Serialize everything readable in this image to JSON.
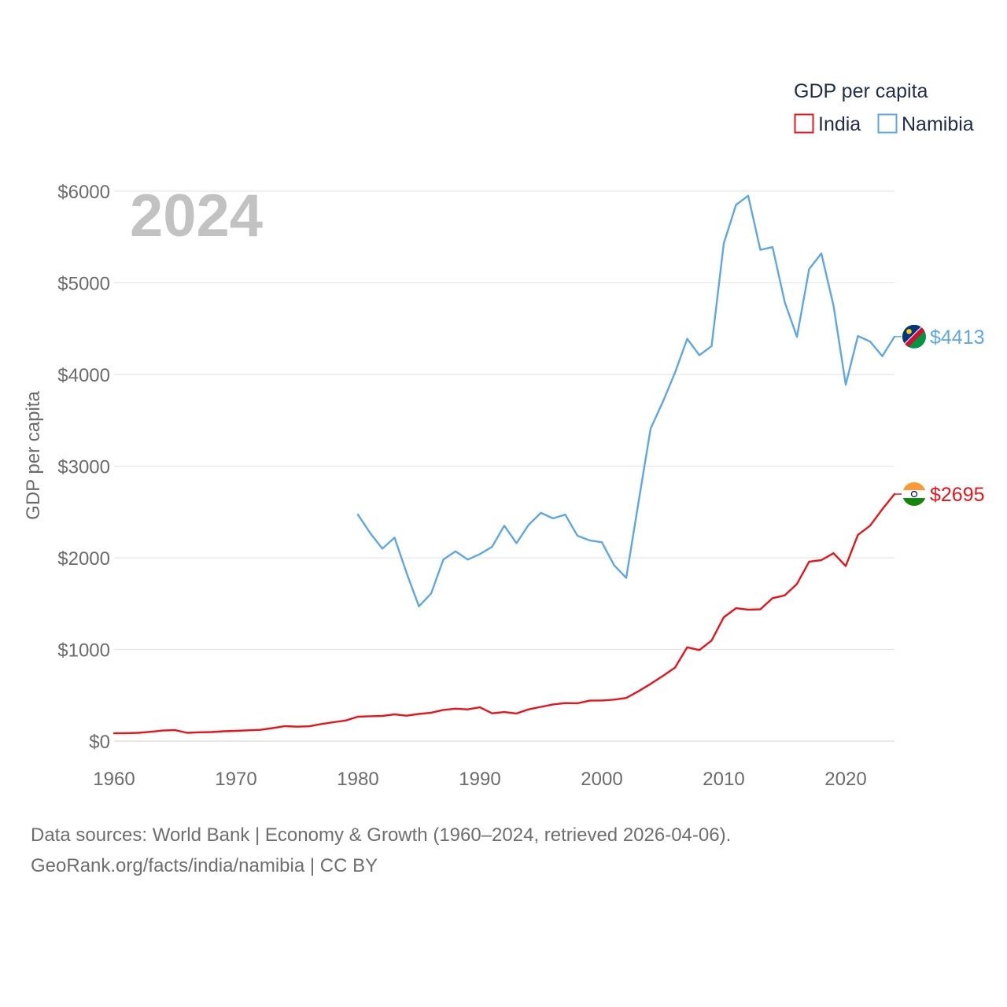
{
  "chart_data": {
    "type": "line",
    "title": "",
    "legend_title": "GDP per capita",
    "ylabel": "GDP per capita",
    "xlabel": "",
    "year_label": "2024",
    "xlim": [
      1960,
      2024
    ],
    "ylim": [
      0,
      6000
    ],
    "x_ticks": [
      1960,
      1970,
      1980,
      1990,
      2000,
      2010,
      2020
    ],
    "x_tick_labels": [
      "1960",
      "1970",
      "1980",
      "1990",
      "2000",
      "2010",
      "2020"
    ],
    "y_ticks": [
      0,
      1000,
      2000,
      3000,
      4000,
      5000,
      6000
    ],
    "y_tick_labels": [
      "$0",
      "$1000",
      "$2000",
      "$3000",
      "$4000",
      "$5000",
      "$6000"
    ],
    "grid": true,
    "legend_position": "top-right",
    "series": [
      {
        "name": "India",
        "color": "#e8141a",
        "end_label": "$2695",
        "flag": "india-flag",
        "x_start": 1960,
        "values": [
          85,
          87,
          90,
          101,
          115,
          119,
          90,
          96,
          99,
          107,
          112,
          118,
          123,
          142,
          163,
          157,
          161,
          186,
          206,
          225,
          266,
          271,
          275,
          291,
          277,
          296,
          310,
          340,
          354,
          346,
          368,
          303,
          317,
          301,
          346,
          373,
          400,
          415,
          413,
          441,
          443,
          452,
          470,
          543,
          624,
          710,
          802,
          1023,
          993,
          1097,
          1351,
          1450,
          1434,
          1438,
          1560,
          1590,
          1714,
          1958,
          1974,
          2050,
          1910,
          2250,
          2350,
          2530,
          2695
        ]
      },
      {
        "name": "Namibia",
        "color": "#5ea7e6",
        "end_label": "$4413",
        "flag": "namibia-flag",
        "x_start": 1980,
        "values": [
          2470,
          2270,
          2100,
          2220,
          1830,
          1470,
          1610,
          1980,
          2070,
          1980,
          2040,
          2120,
          2350,
          2160,
          2360,
          2490,
          2430,
          2470,
          2240,
          2190,
          2170,
          1920,
          1780,
          2600,
          3410,
          3700,
          4020,
          4390,
          4210,
          4310,
          5430,
          5850,
          5950,
          5360,
          5390,
          4790,
          4410,
          5150,
          5320,
          4750,
          3890,
          4420,
          4360,
          4200,
          4413
        ]
      }
    ]
  },
  "footer": {
    "line1": "Data sources: World Bank | Economy & Growth (1960–2024, retrieved 2026-04-06).",
    "line2": "GeoRank.org/facts/india/namibia | CC BY"
  }
}
